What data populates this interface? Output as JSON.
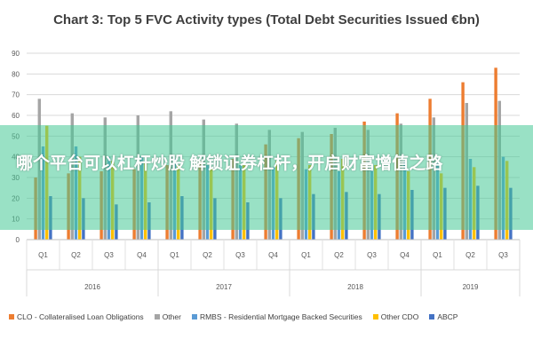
{
  "chart_data": {
    "type": "bar",
    "title": "Chart 3: Top 5 FVC Activity types (Total Debt Securities Issued €bn)",
    "ylim": [
      0,
      90
    ],
    "yticks": [
      0,
      10,
      20,
      30,
      40,
      50,
      60,
      70,
      80,
      90
    ],
    "grid": true,
    "legend_position": "bottom",
    "categories": [
      "Q1",
      "Q2",
      "Q3",
      "Q4",
      "Q1",
      "Q2",
      "Q3",
      "Q4",
      "Q1",
      "Q2",
      "Q3",
      "Q4",
      "Q1",
      "Q2",
      "Q3"
    ],
    "year_groups": [
      {
        "label": "2016",
        "count": 4
      },
      {
        "label": "2017",
        "count": 4
      },
      {
        "label": "2018",
        "count": 4
      },
      {
        "label": "2019",
        "count": 3
      }
    ],
    "series": [
      {
        "name": "CLO - Collateralised Loan Obligations",
        "color": "#ed7d31",
        "values": [
          30,
          32,
          33,
          34,
          36,
          38,
          39,
          46,
          49,
          51,
          57,
          61,
          68,
          76,
          83
        ]
      },
      {
        "name": "Other",
        "color": "#a5a5a5",
        "values": [
          68,
          61,
          59,
          60,
          62,
          58,
          56,
          53,
          52,
          54,
          53,
          56,
          59,
          66,
          67
        ]
      },
      {
        "name": "RMBS - Residential Mortgage Backed Securities",
        "color": "#5b9bd5",
        "values": [
          45,
          45,
          40,
          40,
          39,
          36,
          36,
          35,
          34,
          33,
          36,
          38,
          37,
          39,
          40
        ]
      },
      {
        "name": "Other CDO",
        "color": "#ffc000",
        "values": [
          55,
          40,
          38,
          37,
          36,
          35,
          36,
          38,
          36,
          39,
          36,
          33,
          32,
          35,
          38
        ]
      },
      {
        "name": "ABCP",
        "color": "#4472c4",
        "values": [
          21,
          20,
          17,
          18,
          21,
          20,
          18,
          20,
          22,
          23,
          22,
          24,
          25,
          26,
          25
        ]
      }
    ]
  },
  "overlay": {
    "text": "哪个平台可以杠杆炒股 解锁证券杠杆，开启财富增值之路"
  }
}
